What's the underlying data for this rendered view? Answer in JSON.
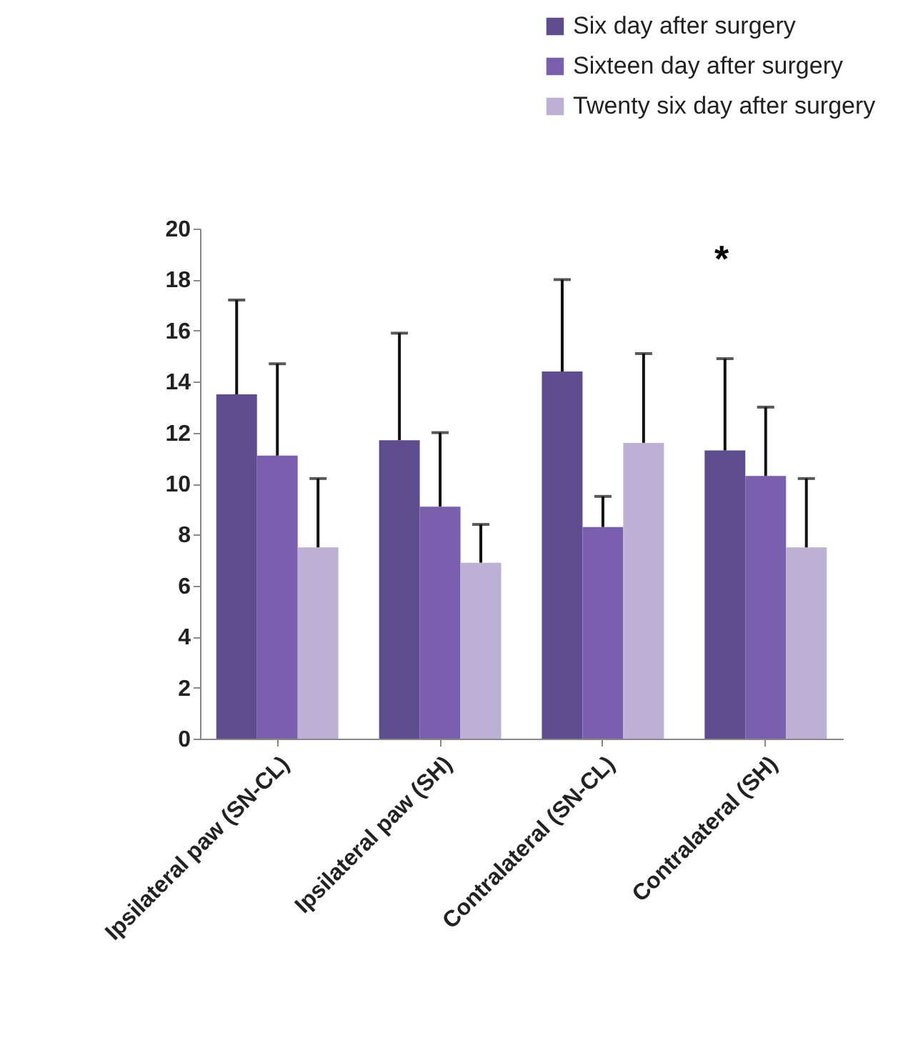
{
  "chart_data": {
    "type": "bar",
    "categories": [
      "Ipsilateral paw (SN-CL)",
      "Ipsilateral paw (SH)",
      "Contralateral (SN-CL)",
      "Contralateral (SH)"
    ],
    "series": [
      {
        "name": "Six day after surgery",
        "color": "#5d4d8e",
        "values": [
          13.5,
          11.7,
          14.4,
          11.3
        ],
        "errors": [
          3.7,
          4.2,
          3.6,
          3.6
        ]
      },
      {
        "name": "Sixteen day after surgery",
        "color": "#7a5fae",
        "values": [
          11.1,
          9.1,
          8.3,
          10.3
        ],
        "errors": [
          3.6,
          2.9,
          1.2,
          2.7
        ]
      },
      {
        "name": "Twenty six day after  surgery",
        "color": "#bcb1d4",
        "values": [
          7.5,
          6.9,
          11.6,
          7.5
        ],
        "errors": [
          2.7,
          1.5,
          3.5,
          2.7
        ]
      }
    ],
    "ylim": [
      0,
      20
    ],
    "yticks": [
      0,
      2,
      4,
      6,
      8,
      10,
      12,
      14,
      16,
      18,
      20
    ],
    "grid": false,
    "legend": "top right",
    "annotations": [
      "*"
    ]
  }
}
